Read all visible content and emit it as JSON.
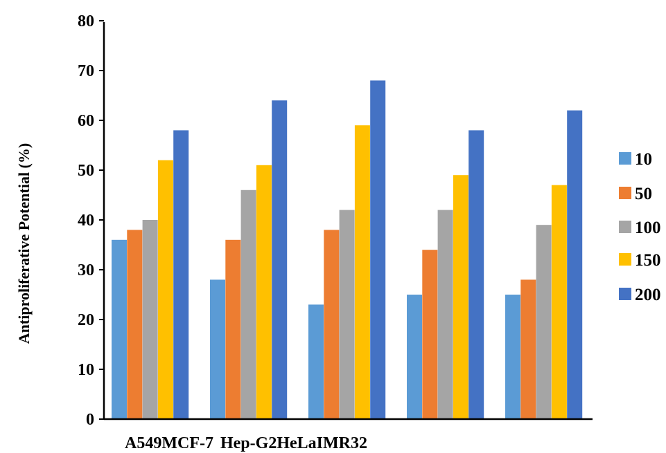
{
  "chart_data": {
    "type": "bar",
    "title": "",
    "xlabel": "",
    "ylabel": "Antiproliferative Potential (%)",
    "ylim": [
      0,
      80
    ],
    "yticks": [
      "0",
      "10",
      "20",
      "30",
      "40",
      "50",
      "60",
      "70",
      "80"
    ],
    "category_label_text": [
      "A549",
      "MCF-7",
      "Hep-G2",
      "HeLa",
      "IMR32"
    ],
    "categories": [
      "A549",
      "MCF-7",
      "Hep-G2",
      "HeLa",
      "IMR32"
    ],
    "legend_position": "right",
    "grid": false,
    "series": [
      {
        "name": "10",
        "color": "#5B9BD5",
        "values": [
          36,
          28,
          23,
          25,
          25
        ]
      },
      {
        "name": "50",
        "color": "#ED7D31",
        "values": [
          38,
          36,
          38,
          34,
          28
        ]
      },
      {
        "name": "100",
        "color": "#A5A5A5",
        "values": [
          40,
          46,
          42,
          42,
          39
        ]
      },
      {
        "name": "150",
        "color": "#FFC000",
        "values": [
          52,
          51,
          59,
          49,
          47
        ]
      },
      {
        "name": "200",
        "color": "#4472C4",
        "values": [
          58,
          64,
          68,
          58,
          62
        ]
      }
    ]
  }
}
